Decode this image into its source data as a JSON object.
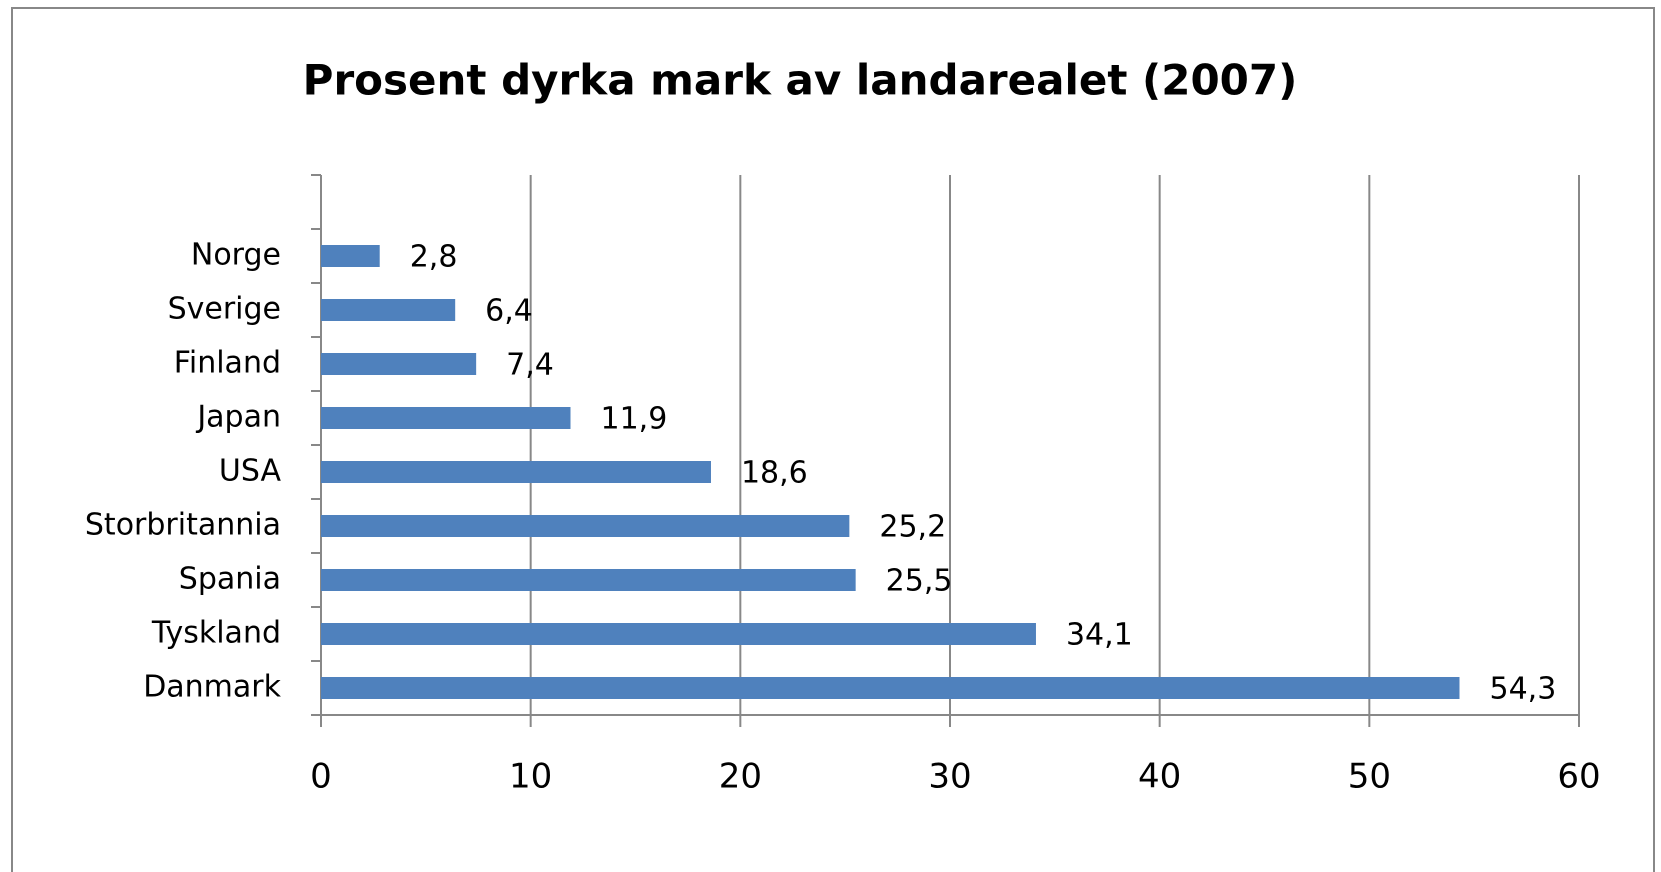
{
  "chart_data": {
    "type": "bar",
    "orientation": "horizontal",
    "title": "Prosent dyrka mark av landarealet  (2007)",
    "categories": [
      null,
      "Norge",
      "Sverige",
      "Finland",
      "Japan",
      "USA",
      "Storbritannia",
      "Spania",
      "Tyskland",
      "Danmark"
    ],
    "values": [
      null,
      2.8,
      6.4,
      7.4,
      11.9,
      18.6,
      25.2,
      25.5,
      34.1,
      54.3
    ],
    "value_labels": [
      null,
      "2,8",
      "6,4",
      "7,4",
      "11,9",
      "18,6",
      "25,2",
      "25,5",
      "34,1",
      "54,3"
    ],
    "color": "#4f81bd",
    "xlim": [
      0,
      60
    ],
    "xticks": [
      0,
      10,
      20,
      30,
      40,
      50,
      60
    ],
    "grid": true
  }
}
